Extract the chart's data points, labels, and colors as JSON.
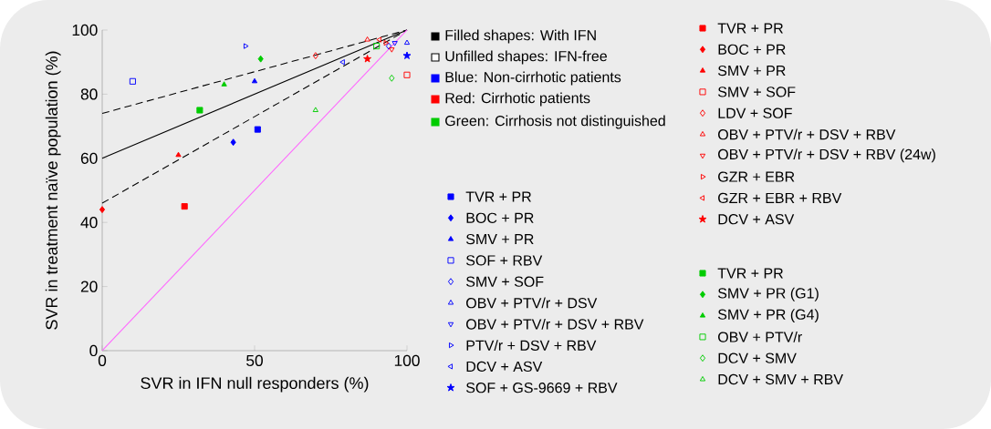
{
  "chart_data": {
    "type": "scatter",
    "xlabel": "SVR in IFN null responders (%)",
    "ylabel": "SVR in treatment naïve population (%)",
    "xlim": [
      0,
      100
    ],
    "ylim": [
      0,
      100
    ],
    "xticks": [
      0,
      50,
      100
    ],
    "yticks": [
      0,
      20,
      40,
      60,
      80,
      100
    ],
    "grid": false,
    "legend": "right",
    "annotations": [
      "Filled shapes: With IFN",
      "Unfilled shapes: IFN-free",
      "Blue: Non-cirrhotic patients",
      "Red: Cirrhotic patients",
      "Green: Cirrhosis not distinguished"
    ],
    "series": [
      {
        "name": "TVR + PR",
        "color": "#0000ff",
        "marker": "square",
        "x": [
          51
        ],
        "values": [
          69
        ]
      },
      {
        "name": "BOC + PR",
        "color": "#0000ff",
        "marker": "diamond",
        "x": [
          43
        ],
        "values": [
          65
        ]
      },
      {
        "name": "SMV + PR",
        "color": "#0000ff",
        "marker": "triangle",
        "x": [
          50
        ],
        "values": [
          84
        ]
      },
      {
        "name": "SOF + RBV",
        "color": "#0000ff",
        "marker": "square-open",
        "x": [
          10
        ],
        "values": [
          84
        ]
      },
      {
        "name": "SMV + SOF",
        "color": "#0000ff",
        "marker": "diamond-open",
        "x": [
          94
        ],
        "values": [
          95
        ]
      },
      {
        "name": "OBV + PTV/r + DSV",
        "color": "#0000ff",
        "marker": "triangle-open",
        "x": [
          100
        ],
        "values": [
          96
        ]
      },
      {
        "name": "OBV + PTV/r + DSV + RBV",
        "color": "#0000ff",
        "marker": "triangle-down-open",
        "x": [
          96
        ],
        "values": [
          96
        ]
      },
      {
        "name": "PTV/r + DSV + RBV",
        "color": "#0000ff",
        "marker": "triangle-right-open",
        "x": [
          47
        ],
        "values": [
          95
        ]
      },
      {
        "name": "DCV + ASV",
        "color": "#0000ff",
        "marker": "triangle-left-open",
        "x": [
          79
        ],
        "values": [
          90
        ]
      },
      {
        "name": "SOF + GS-9669 + RBV",
        "color": "#0000ff",
        "marker": "star",
        "x": [
          100
        ],
        "values": [
          92
        ]
      },
      {
        "name": "TVR + PR",
        "color": "#ff0000",
        "marker": "square",
        "x": [
          27
        ],
        "values": [
          45
        ]
      },
      {
        "name": "BOC + PR",
        "color": "#ff0000",
        "marker": "diamond",
        "x": [
          0
        ],
        "values": [
          44
        ]
      },
      {
        "name": "SMV + PR",
        "color": "#ff0000",
        "marker": "triangle",
        "x": [
          25
        ],
        "values": [
          61
        ]
      },
      {
        "name": "SMV + SOF",
        "color": "#ff0000",
        "marker": "square-open",
        "x": [
          100
        ],
        "values": [
          86
        ]
      },
      {
        "name": "LDV + SOF",
        "color": "#ff0000",
        "marker": "diamond-open",
        "x": [
          70
        ],
        "values": [
          92
        ]
      },
      {
        "name": "OBV + PTV/r + DSV + RBV",
        "color": "#ff0000",
        "marker": "triangle-open",
        "x": [
          87
        ],
        "values": [
          97
        ]
      },
      {
        "name": "OBV + PTV/r + DSV + RBV (24w)",
        "color": "#ff0000",
        "marker": "triangle-down-open",
        "x": [
          95
        ],
        "values": [
          94
        ]
      },
      {
        "name": "GZR + EBR",
        "color": "#ff0000",
        "marker": "triangle-right-open",
        "x": [
          93
        ],
        "values": [
          96
        ]
      },
      {
        "name": "GZR + EBR + RBV",
        "color": "#ff0000",
        "marker": "triangle-left-open",
        "x": [
          91
        ],
        "values": [
          97
        ]
      },
      {
        "name": "DCV + ASV",
        "color": "#ff0000",
        "marker": "star",
        "x": [
          87
        ],
        "values": [
          91
        ]
      },
      {
        "name": "TVR + PR",
        "color": "#00cc00",
        "marker": "square",
        "x": [
          32
        ],
        "values": [
          75
        ]
      },
      {
        "name": "SMV + PR (G1)",
        "color": "#00cc00",
        "marker": "diamond",
        "x": [
          52
        ],
        "values": [
          91
        ]
      },
      {
        "name": "SMV + PR (G4)",
        "color": "#00cc00",
        "marker": "triangle",
        "x": [
          40
        ],
        "values": [
          83
        ]
      },
      {
        "name": "OBV + PTV/r",
        "color": "#00cc00",
        "marker": "square-open",
        "x": [
          90
        ],
        "values": [
          95
        ]
      },
      {
        "name": "DCV + SMV",
        "color": "#00cc00",
        "marker": "diamond-open",
        "x": [
          95
        ],
        "values": [
          85
        ]
      },
      {
        "name": "DCV + SMV + RBV",
        "color": "#00cc00",
        "marker": "triangle-open",
        "x": [
          70
        ],
        "values": [
          75
        ]
      },
      {
        "type": "line",
        "color": "#000000",
        "line_style": "solid",
        "x": [
          0,
          100
        ],
        "values": [
          60,
          100
        ]
      },
      {
        "type": "line",
        "color": "#000000",
        "line_style": "dashed",
        "x": [
          0,
          100
        ],
        "values": [
          74,
          100
        ]
      },
      {
        "type": "line",
        "color": "#000000",
        "line_style": "dashed",
        "x": [
          0,
          100
        ],
        "values": [
          46,
          100
        ]
      },
      {
        "type": "line",
        "color": "#ff66ff",
        "line_style": "solid",
        "x": [
          0,
          100
        ],
        "values": [
          0,
          100
        ]
      }
    ]
  }
}
